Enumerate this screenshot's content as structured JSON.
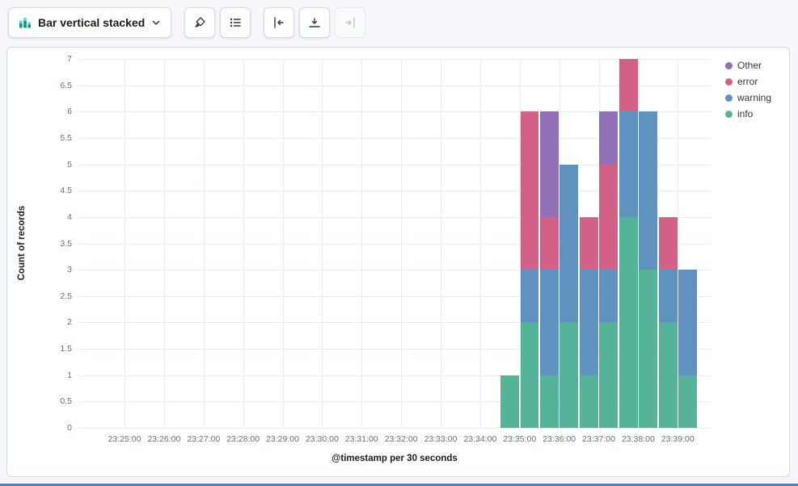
{
  "toolbar": {
    "chart_type_selector": {
      "label": "Bar vertical stacked",
      "icon": "bar-vertical-stacked-icon"
    },
    "display_group": [
      {
        "id": "visual-options",
        "icon": "paintbrush-icon",
        "disabled": false
      },
      {
        "id": "legend-settings",
        "icon": "list-icon",
        "disabled": false
      }
    ],
    "axis_group": [
      {
        "id": "left-axis",
        "icon": "axis-left-icon",
        "disabled": false
      },
      {
        "id": "bottom-axis",
        "icon": "axis-bottom-icon",
        "disabled": false
      },
      {
        "id": "right-axis",
        "icon": "axis-right-icon",
        "disabled": true
      }
    ]
  },
  "chart_data": {
    "type": "bar",
    "stacked": true,
    "orientation": "vertical",
    "title": "",
    "xlabel": "@timestamp per 30 seconds",
    "ylabel": "Count of records",
    "ylim": [
      0,
      7
    ],
    "y_tick_step": 0.5,
    "grid": true,
    "legend_position": "right",
    "legend": [
      "Other",
      "error",
      "warning",
      "info"
    ],
    "x_domain": [
      "23:23:50",
      "23:39:50"
    ],
    "bucket_seconds": 30,
    "x_ticks": [
      "23:25:00",
      "23:26:00",
      "23:27:00",
      "23:28:00",
      "23:29:00",
      "23:30:00",
      "23:31:00",
      "23:32:00",
      "23:33:00",
      "23:34:00",
      "23:35:00",
      "23:36:00",
      "23:37:00",
      "23:38:00",
      "23:39:00"
    ],
    "categories": [
      "23:34:30",
      "23:35:00",
      "23:35:30",
      "23:36:00",
      "23:36:30",
      "23:37:00",
      "23:37:30",
      "23:38:00",
      "23:38:30",
      "23:39:00"
    ],
    "series": [
      {
        "name": "info",
        "color": "#54B399",
        "values": [
          1,
          2,
          1,
          2,
          1,
          2,
          4,
          3,
          2,
          1
        ]
      },
      {
        "name": "warning",
        "color": "#6092C0",
        "values": [
          0,
          1,
          2,
          3,
          2,
          1,
          2,
          3,
          1,
          2
        ]
      },
      {
        "name": "error",
        "color": "#D36086",
        "values": [
          0,
          3,
          1,
          0,
          1,
          2,
          1,
          0,
          1,
          0
        ]
      },
      {
        "name": "Other",
        "color": "#9170B8",
        "values": [
          0,
          0,
          2,
          0,
          0,
          1,
          0,
          0,
          0,
          0
        ]
      }
    ],
    "colors": {
      "accent_bottom_bar": "#4285D8"
    }
  }
}
